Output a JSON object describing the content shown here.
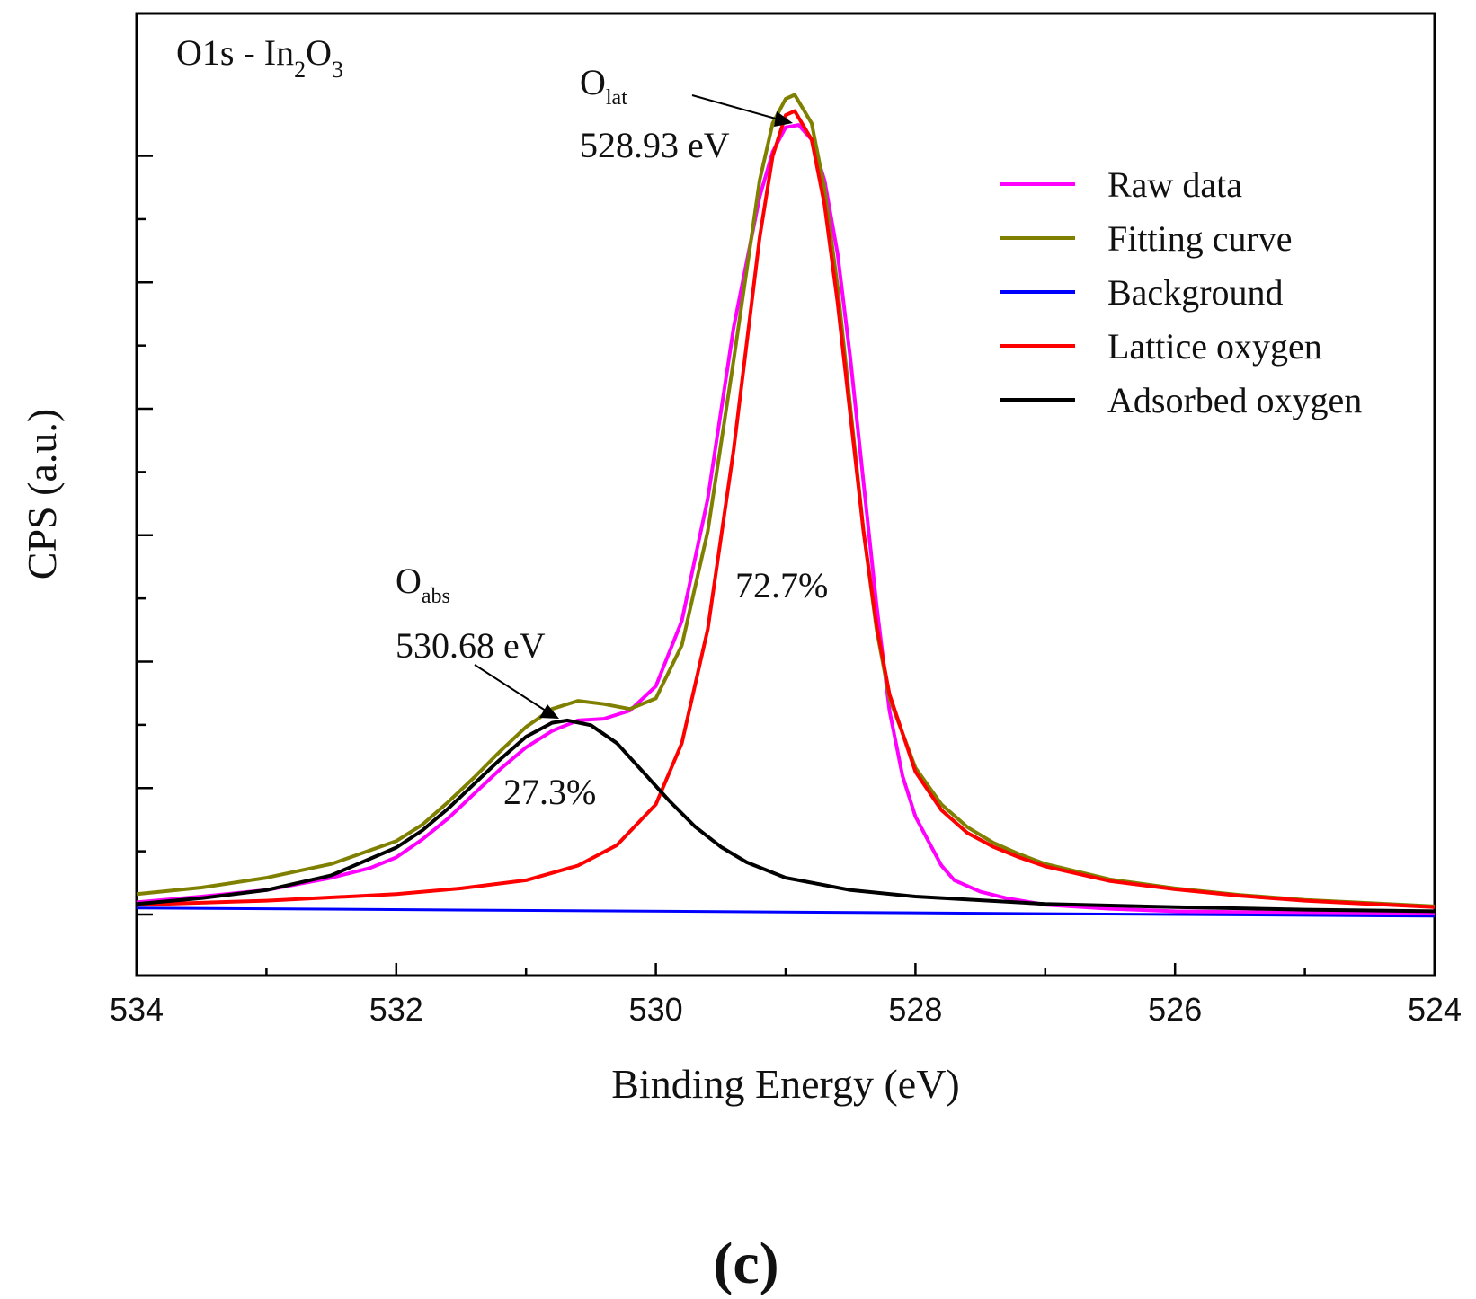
{
  "chart_data": {
    "type": "line",
    "title": {
      "main": "O1s - In",
      "sub1": "2",
      "mid": "O",
      "sub2": "3"
    },
    "xlabel": "Binding Energy (eV)",
    "ylabel": "CPS (a.u.)",
    "xlim": [
      534,
      524
    ],
    "x_reversed": true,
    "ylim": [
      -0.08,
      1.0
    ],
    "y_ticks_labeled": false,
    "x_ticks": [
      534,
      532,
      530,
      528,
      526,
      524
    ],
    "x_tick_labels": [
      "534",
      "532",
      "530",
      "528",
      "526",
      "524"
    ],
    "grid": false,
    "legend_position": "top-right",
    "panel_label": "(c)",
    "peaks": {
      "lattice": {
        "center": 528.93,
        "label_main": "O",
        "label_sub": "lat",
        "label_energy": "528.93 eV",
        "area_label": "72.7%"
      },
      "adsorbed": {
        "center": 530.68,
        "label_main": "O",
        "label_sub": "abs",
        "label_energy": "530.68 eV",
        "area_label": "27.3%"
      }
    },
    "series": [
      {
        "name": "Raw data",
        "color": "#ff00ff",
        "x": [
          534.0,
          533.5,
          533.0,
          532.5,
          532.2,
          532.0,
          531.8,
          531.6,
          531.4,
          531.2,
          531.0,
          530.8,
          530.6,
          530.4,
          530.2,
          530.0,
          529.8,
          529.6,
          529.4,
          529.2,
          529.1,
          529.0,
          528.9,
          528.8,
          528.7,
          528.6,
          528.5,
          528.4,
          528.3,
          528.2,
          528.1,
          528.0,
          527.9,
          527.8,
          527.7,
          527.5,
          527.3,
          527.0,
          526.5,
          526.0,
          525.5,
          525.0,
          524.5,
          524.0
        ],
        "y": [
          0.015,
          0.022,
          0.03,
          0.045,
          0.057,
          0.07,
          0.092,
          0.118,
          0.148,
          0.178,
          0.205,
          0.225,
          0.238,
          0.24,
          0.25,
          0.28,
          0.36,
          0.51,
          0.72,
          0.88,
          0.935,
          0.965,
          0.968,
          0.95,
          0.9,
          0.81,
          0.68,
          0.53,
          0.38,
          0.25,
          0.17,
          0.12,
          0.09,
          0.06,
          0.042,
          0.028,
          0.02,
          0.012,
          0.007,
          0.004,
          0.003,
          0.002,
          0.002,
          0.001
        ]
      },
      {
        "name": "Fitting curve",
        "color": "#808000",
        "x": [
          534.0,
          533.5,
          533.0,
          532.5,
          532.0,
          531.8,
          531.6,
          531.4,
          531.2,
          531.0,
          530.8,
          530.6,
          530.4,
          530.2,
          530.0,
          529.8,
          529.6,
          529.4,
          529.2,
          529.1,
          529.0,
          528.93,
          528.8,
          528.7,
          528.6,
          528.5,
          528.4,
          528.3,
          528.2,
          528.0,
          527.8,
          527.6,
          527.4,
          527.2,
          527.0,
          526.5,
          526.0,
          525.5,
          525.0,
          524.5,
          524.0
        ],
        "y": [
          0.025,
          0.033,
          0.045,
          0.062,
          0.09,
          0.11,
          0.138,
          0.168,
          0.2,
          0.23,
          0.252,
          0.262,
          0.258,
          0.252,
          0.265,
          0.33,
          0.47,
          0.68,
          0.9,
          0.97,
          1.0,
          1.005,
          0.97,
          0.89,
          0.77,
          0.62,
          0.47,
          0.35,
          0.265,
          0.18,
          0.135,
          0.107,
          0.088,
          0.074,
          0.062,
          0.043,
          0.032,
          0.024,
          0.018,
          0.014,
          0.01
        ]
      },
      {
        "name": "Background",
        "color": "#0000ff",
        "x": [
          534.0,
          524.0
        ],
        "y": [
          0.008,
          -0.002
        ]
      },
      {
        "name": "Lattice oxygen",
        "color": "#ff0000",
        "x": [
          534.0,
          533.0,
          532.0,
          531.5,
          531.0,
          530.6,
          530.3,
          530.0,
          529.8,
          529.6,
          529.4,
          529.2,
          529.1,
          529.0,
          528.93,
          528.8,
          528.7,
          528.6,
          528.5,
          528.4,
          528.3,
          528.2,
          528.0,
          527.8,
          527.6,
          527.4,
          527.2,
          527.0,
          526.5,
          526.0,
          525.5,
          525.0,
          524.5,
          524.0
        ],
        "y": [
          0.012,
          0.017,
          0.025,
          0.032,
          0.042,
          0.06,
          0.085,
          0.135,
          0.21,
          0.35,
          0.57,
          0.83,
          0.93,
          0.98,
          0.985,
          0.95,
          0.87,
          0.75,
          0.61,
          0.47,
          0.355,
          0.27,
          0.175,
          0.128,
          0.1,
          0.083,
          0.07,
          0.059,
          0.041,
          0.031,
          0.023,
          0.017,
          0.013,
          0.009
        ]
      },
      {
        "name": "Adsorbed oxygen",
        "color": "#000000",
        "x": [
          534.0,
          533.5,
          533.0,
          532.5,
          532.0,
          531.8,
          531.6,
          531.4,
          531.2,
          531.0,
          530.8,
          530.68,
          530.5,
          530.3,
          530.1,
          529.9,
          529.7,
          529.5,
          529.3,
          529.0,
          528.5,
          528.0,
          527.0,
          526.0,
          525.0,
          524.0
        ],
        "y": [
          0.013,
          0.02,
          0.03,
          0.048,
          0.082,
          0.103,
          0.13,
          0.16,
          0.19,
          0.218,
          0.235,
          0.238,
          0.232,
          0.21,
          0.175,
          0.14,
          0.108,
          0.083,
          0.064,
          0.045,
          0.03,
          0.022,
          0.013,
          0.009,
          0.006,
          0.004
        ]
      }
    ]
  }
}
